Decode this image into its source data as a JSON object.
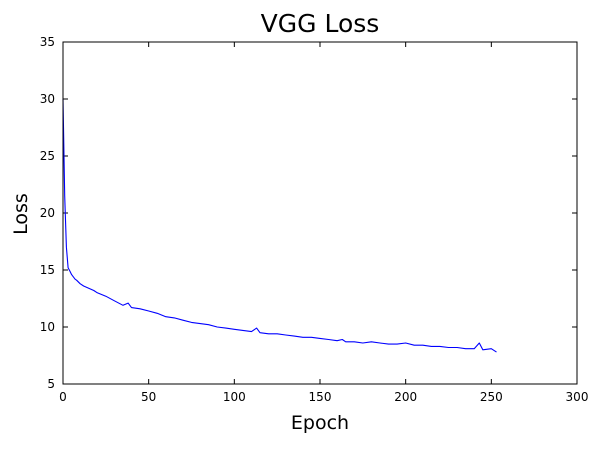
{
  "chart_data": {
    "type": "line",
    "title": "VGG Loss",
    "xlabel": "Epoch",
    "ylabel": "Loss",
    "xlim": [
      0,
      300
    ],
    "ylim": [
      5,
      35
    ],
    "xticks": [
      0,
      50,
      100,
      150,
      200,
      250,
      300
    ],
    "yticks": [
      5,
      10,
      15,
      20,
      25,
      30,
      35
    ],
    "grid": false,
    "legend": "none",
    "line_color": "#0000ff",
    "series": [
      {
        "x": [
          0,
          1,
          2,
          3,
          4,
          5,
          6,
          7,
          8,
          10,
          12,
          15,
          18,
          20,
          25,
          30,
          35,
          38,
          40,
          45,
          50,
          55,
          60,
          65,
          70,
          75,
          80,
          85,
          90,
          95,
          100,
          105,
          110,
          113,
          115,
          120,
          125,
          130,
          135,
          140,
          145,
          150,
          155,
          160,
          163,
          165,
          170,
          175,
          180,
          185,
          190,
          195,
          200,
          205,
          210,
          215,
          220,
          225,
          230,
          235,
          240,
          243,
          245,
          250,
          253
        ],
        "y": [
          30.0,
          21.5,
          17.0,
          15.2,
          14.9,
          14.6,
          14.4,
          14.2,
          14.1,
          13.8,
          13.6,
          13.4,
          13.2,
          13.0,
          12.7,
          12.3,
          11.9,
          12.1,
          11.7,
          11.6,
          11.4,
          11.2,
          10.9,
          10.8,
          10.6,
          10.4,
          10.3,
          10.2,
          10.0,
          9.9,
          9.8,
          9.7,
          9.6,
          9.9,
          9.5,
          9.4,
          9.4,
          9.3,
          9.2,
          9.1,
          9.1,
          9.0,
          8.9,
          8.8,
          8.9,
          8.7,
          8.7,
          8.6,
          8.7,
          8.6,
          8.5,
          8.5,
          8.6,
          8.4,
          8.4,
          8.3,
          8.3,
          8.2,
          8.2,
          8.1,
          8.1,
          8.6,
          8.0,
          8.1,
          7.8
        ]
      }
    ]
  }
}
